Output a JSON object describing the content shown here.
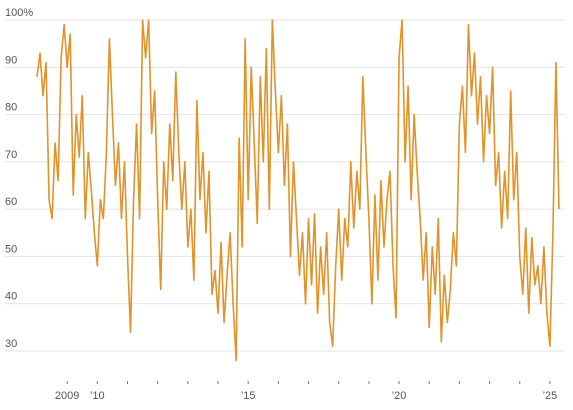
{
  "chart_data": {
    "type": "line",
    "x": [
      2008,
      2008.1,
      2008.2,
      2008.3,
      2008.4,
      2008.5,
      2008.6,
      2008.7,
      2008.8,
      2008.9,
      2009,
      2009.1,
      2009.2,
      2009.3,
      2009.4,
      2009.5,
      2009.6,
      2009.7,
      2009.8,
      2009.9,
      2010,
      2010.1,
      2010.2,
      2010.3,
      2010.4,
      2010.5,
      2010.6,
      2010.7,
      2010.8,
      2010.9,
      2011,
      2011.1,
      2011.2,
      2011.3,
      2011.4,
      2011.5,
      2011.6,
      2011.7,
      2011.8,
      2011.9,
      2012,
      2012.1,
      2012.2,
      2012.3,
      2012.4,
      2012.5,
      2012.6,
      2012.7,
      2012.8,
      2012.9,
      2013,
      2013.1,
      2013.2,
      2013.3,
      2013.4,
      2013.5,
      2013.6,
      2013.7,
      2013.8,
      2013.9,
      2014,
      2014.1,
      2014.2,
      2014.3,
      2014.4,
      2014.5,
      2014.6,
      2014.7,
      2014.8,
      2014.9,
      2015,
      2015.1,
      2015.2,
      2015.3,
      2015.4,
      2015.5,
      2015.6,
      2015.7,
      2015.8,
      2015.9,
      2016,
      2016.1,
      2016.2,
      2016.3,
      2016.4,
      2016.5,
      2016.6,
      2016.7,
      2016.8,
      2016.9,
      2017,
      2017.1,
      2017.2,
      2017.3,
      2017.4,
      2017.5,
      2017.6,
      2017.7,
      2017.8,
      2017.9,
      2018,
      2018.1,
      2018.2,
      2018.3,
      2018.4,
      2018.5,
      2018.6,
      2018.7,
      2018.8,
      2018.9,
      2019,
      2019.1,
      2019.2,
      2019.3,
      2019.4,
      2019.5,
      2019.6,
      2019.7,
      2019.8,
      2019.9,
      2020,
      2020.1,
      2020.2,
      2020.3,
      2020.4,
      2020.5,
      2020.6,
      2020.7,
      2020.8,
      2020.9,
      2021,
      2021.1,
      2021.2,
      2021.3,
      2021.4,
      2021.5,
      2021.6,
      2021.7,
      2021.8,
      2021.9,
      2022,
      2022.1,
      2022.2,
      2022.3,
      2022.4,
      2022.5,
      2022.6,
      2022.7,
      2022.8,
      2022.9,
      2023,
      2023.1,
      2023.2,
      2023.3,
      2023.4,
      2023.5,
      2023.6,
      2023.7,
      2023.8,
      2023.9,
      2024,
      2024.1,
      2024.2,
      2024.3,
      2024.4,
      2024.5,
      2024.6,
      2024.7,
      2024.8,
      2024.9,
      2025,
      2025.1,
      2025.2,
      2025.3
    ],
    "values": [
      88,
      93,
      84,
      91,
      62,
      58,
      74,
      66,
      92,
      99,
      90,
      97,
      63,
      80,
      71,
      84,
      58,
      72,
      64,
      55,
      48,
      62,
      58,
      72,
      96,
      80,
      65,
      74,
      58,
      70,
      50,
      34,
      62,
      78,
      58,
      100,
      92,
      100,
      76,
      85,
      62,
      43,
      70,
      60,
      78,
      66,
      89,
      72,
      60,
      70,
      52,
      60,
      45,
      83,
      62,
      72,
      55,
      68,
      42,
      47,
      38,
      53,
      36,
      46,
      55,
      40,
      28,
      75,
      52,
      96,
      62,
      90,
      74,
      57,
      88,
      70,
      94,
      60,
      100,
      85,
      72,
      84,
      65,
      78,
      50,
      70,
      58,
      46,
      55,
      40,
      58,
      44,
      59,
      38,
      52,
      42,
      55,
      36,
      31,
      48,
      60,
      45,
      58,
      52,
      70,
      56,
      68,
      60,
      88,
      72,
      58,
      40,
      63,
      45,
      66,
      52,
      62,
      68,
      48,
      37,
      92,
      100,
      70,
      86,
      62,
      80,
      68,
      58,
      45,
      55,
      35,
      52,
      42,
      58,
      32,
      46,
      36,
      43,
      55,
      48,
      78,
      86,
      72,
      99,
      84,
      93,
      78,
      88,
      70,
      84,
      76,
      90,
      65,
      72,
      56,
      68,
      58,
      85,
      62,
      72,
      50,
      42,
      56,
      38,
      54,
      44,
      48,
      40,
      52,
      38,
      31,
      55,
      91,
      60
    ],
    "color": "#e2922a",
    "xlim": [
      2008,
      2025.5
    ],
    "ylim": [
      25,
      100
    ],
    "yticks": [
      30,
      40,
      50,
      60,
      70,
      80,
      90,
      {
        "value": 100,
        "label": "100%"
      }
    ],
    "xticks": [
      2009,
      {
        "value": 2010,
        "label": "’10"
      },
      {
        "value": 2011,
        "label": null
      },
      {
        "value": 2012,
        "label": null
      },
      {
        "value": 2013,
        "label": null
      },
      {
        "value": 2014,
        "label": null
      },
      {
        "value": 2015,
        "label": "’15"
      },
      {
        "value": 2016,
        "label": null
      },
      {
        "value": 2017,
        "label": null
      },
      {
        "value": 2018,
        "label": null
      },
      {
        "value": 2019,
        "label": null
      },
      {
        "value": 2020,
        "label": "’20"
      },
      {
        "value": 2021,
        "label": null
      },
      {
        "value": 2022,
        "label": null
      },
      {
        "value": 2023,
        "label": null
      },
      {
        "value": 2024,
        "label": null
      },
      {
        "value": 2025,
        "label": "’25"
      }
    ],
    "grid": true
  }
}
